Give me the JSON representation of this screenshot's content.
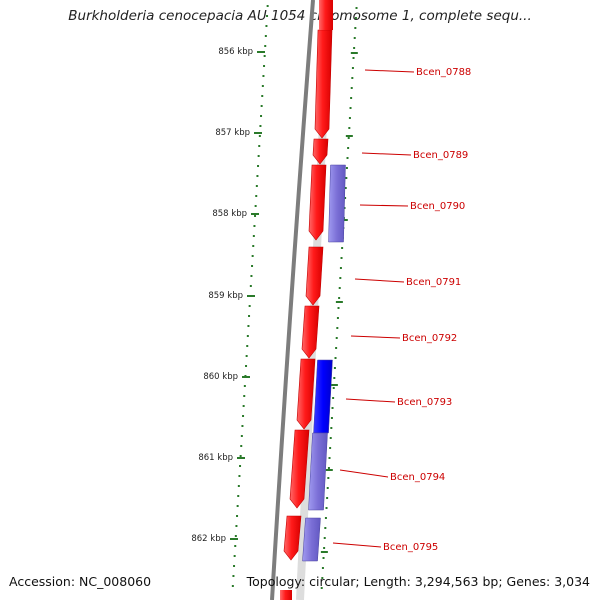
{
  "title": "Burkholderia cenocepacia AU 1054 chromosome 1, complete sequ...",
  "footer": {
    "accession": "Accession: NC_008060",
    "summary": "Topology: circular; Length: 3,294,563 bp; Genes: 3,034"
  },
  "scale": {
    "unit": "kbp",
    "ticks": [
      "856 kbp",
      "857 kbp",
      "858 kbp",
      "859 kbp",
      "860 kbp",
      "861 kbp",
      "862 kbp"
    ]
  },
  "genes": [
    {
      "label": "Bcen_0788"
    },
    {
      "label": "Bcen_0789"
    },
    {
      "label": "Bcen_0790"
    },
    {
      "label": "Bcen_0791"
    },
    {
      "label": "Bcen_0792"
    },
    {
      "label": "Bcen_0793"
    },
    {
      "label": "Bcen_0794"
    },
    {
      "label": "Bcen_0795"
    }
  ],
  "colors": {
    "forward_cds": "#ff0000",
    "reverse_cds_light": "#7b6fd6",
    "reverse_cds_selected": "#0000ff",
    "label": "#cc0000",
    "tick": "#2a7a2a",
    "backbone": "#888888"
  }
}
